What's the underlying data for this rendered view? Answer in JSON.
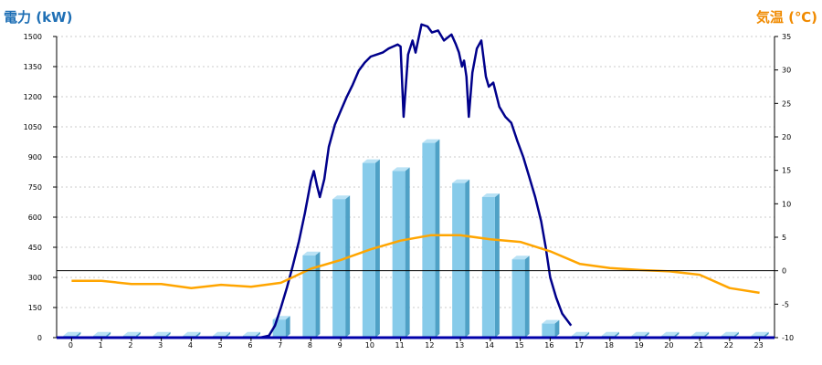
{
  "chart_data": {
    "type": "bar",
    "title": "",
    "left_axis_label": "電力 (kW)",
    "right_axis_label": "気温 (℃)",
    "colors": {
      "left_label": "#1E6FB5",
      "right_label": "#F08A00",
      "bar": "#87CBEA",
      "bar_side": "#4FA1C6",
      "bar_top": "#B9E2F5",
      "power_line": "#00008B",
      "temp_line": "#FFA500",
      "grid": "#BBBBBB"
    },
    "x_ticks": [
      "0",
      "1",
      "2",
      "3",
      "4",
      "5",
      "6",
      "7",
      "8",
      "9",
      "10",
      "11",
      "12",
      "13",
      "14",
      "15",
      "16",
      "17",
      "18",
      "19",
      "20",
      "21",
      "22",
      "23"
    ],
    "y_left": {
      "min": 0,
      "max": 1500,
      "ticks": [
        "0",
        "150",
        "300",
        "450",
        "600",
        "750",
        "900",
        "1050",
        "1200",
        "1350",
        "1500"
      ]
    },
    "y_right": {
      "min": -10,
      "max": 35,
      "ticks": [
        "-10",
        "-5",
        "0",
        "5",
        "10",
        "15",
        "20",
        "25",
        "30",
        "35"
      ]
    },
    "zero_line_temp": 0,
    "grid": true,
    "series": [
      {
        "kind": "bar",
        "axis": "left",
        "values": [
          10,
          10,
          10,
          10,
          10,
          10,
          10,
          90,
          410,
          690,
          870,
          830,
          970,
          770,
          700,
          390,
          70,
          10,
          10,
          10,
          10,
          10,
          10,
          10
        ]
      },
      {
        "kind": "line",
        "axis": "left",
        "x": [
          6.3,
          6.6,
          6.8,
          7.0,
          7.2,
          7.4,
          7.6,
          7.8,
          7.9,
          8.0,
          8.1,
          8.2,
          8.3,
          8.45,
          8.6,
          8.8,
          9.0,
          9.2,
          9.4,
          9.6,
          9.8,
          10.0,
          10.2,
          10.4,
          10.6,
          10.75,
          10.9,
          11.0,
          11.1,
          11.25,
          11.4,
          11.5,
          11.7,
          11.9,
          12.05,
          12.25,
          12.45,
          12.7,
          12.85,
          12.95,
          13.05,
          13.12,
          13.2,
          13.28,
          13.4,
          13.55,
          13.7,
          13.85,
          13.95,
          14.1,
          14.3,
          14.5,
          14.7,
          14.9,
          15.1,
          15.3,
          15.5,
          15.7,
          15.85,
          16.0,
          16.2,
          16.4,
          16.7
        ],
        "values": [
          0,
          10,
          60,
          150,
          250,
          360,
          480,
          620,
          700,
          780,
          830,
          760,
          700,
          790,
          950,
          1060,
          1130,
          1200,
          1260,
          1330,
          1370,
          1400,
          1410,
          1420,
          1440,
          1450,
          1460,
          1450,
          1100,
          1410,
          1480,
          1420,
          1560,
          1550,
          1520,
          1530,
          1480,
          1510,
          1460,
          1420,
          1350,
          1380,
          1300,
          1100,
          1320,
          1440,
          1480,
          1300,
          1250,
          1270,
          1150,
          1100,
          1070,
          980,
          900,
          800,
          700,
          580,
          450,
          300,
          200,
          120,
          60
        ]
      },
      {
        "kind": "line",
        "axis": "right",
        "values": [
          -1.5,
          -1.5,
          -2.0,
          -2.0,
          -2.6,
          -2.1,
          -2.4,
          -1.8,
          0.3,
          1.6,
          3.2,
          4.5,
          5.3,
          5.3,
          4.7,
          4.3,
          2.9,
          1.0,
          0.4,
          0.1,
          -0.1,
          -0.6,
          -2.6,
          -3.3
        ]
      }
    ]
  }
}
